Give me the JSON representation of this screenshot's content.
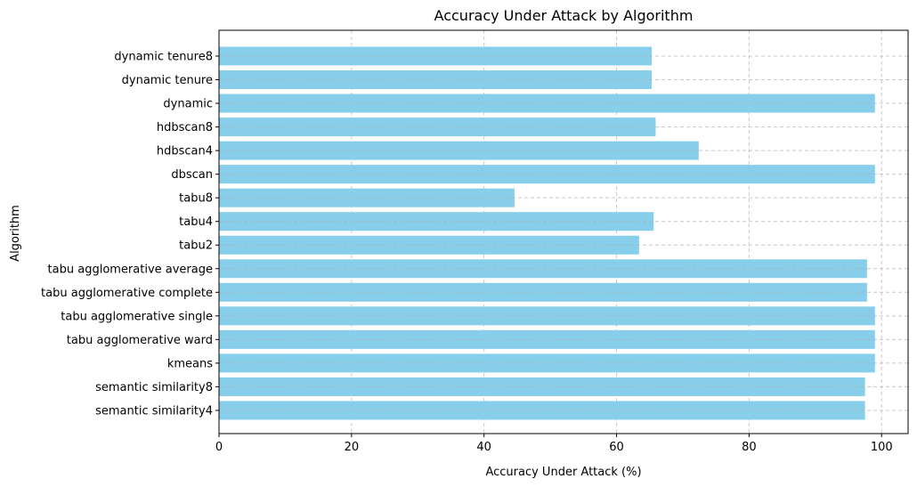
{
  "chart_data": {
    "type": "bar",
    "orientation": "horizontal",
    "title": "Accuracy Under Attack by Algorithm",
    "xlabel": "Accuracy Under Attack (%)",
    "ylabel": "Algorithm",
    "xlim": [
      0,
      104
    ],
    "xticks": [
      0,
      20,
      40,
      60,
      80,
      100
    ],
    "grid": true,
    "bar_color": "#87ceeb",
    "categories": [
      "dynamic tenure8",
      "dynamic tenure",
      "dynamic",
      "hdbscan8",
      "hdbscan4",
      "dbscan",
      "tabu8",
      "tabu4",
      "tabu2",
      "tabu agglomerative average",
      "tabu agglomerative complete",
      "tabu agglomerative single",
      "tabu agglomerative ward",
      "kmeans",
      "semantic similarity8",
      "semantic similarity4"
    ],
    "values": [
      65.3,
      65.3,
      99.0,
      65.9,
      72.4,
      99.0,
      44.6,
      65.6,
      63.4,
      97.8,
      97.8,
      99.0,
      99.0,
      99.0,
      97.5,
      97.5
    ]
  }
}
